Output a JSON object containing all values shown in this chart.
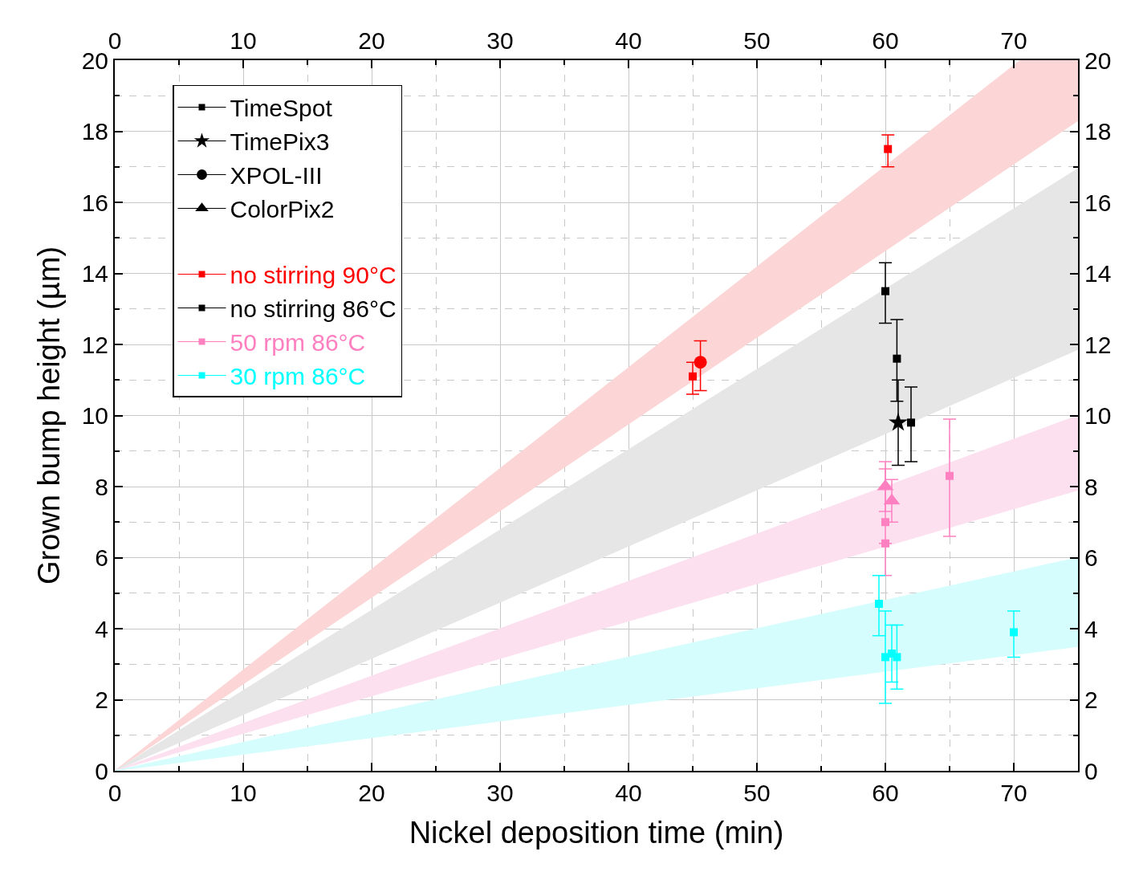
{
  "chart_data": {
    "type": "scatter",
    "xlabel": "Nickel deposition time (min)",
    "ylabel": "Grown bump height (µm)",
    "xlim": [
      0,
      75
    ],
    "xticks": [
      0,
      10,
      20,
      30,
      40,
      50,
      60,
      70
    ],
    "x2lim": [
      0,
      75
    ],
    "x2ticks": [
      0,
      10,
      20,
      30,
      40,
      50,
      60,
      70
    ],
    "ylim": [
      0,
      20
    ],
    "yticks": [
      0,
      2,
      4,
      6,
      8,
      10,
      12,
      14,
      16,
      18,
      20
    ],
    "y2lim": [
      0,
      20
    ],
    "y2ticks": [
      0,
      2,
      4,
      6,
      8,
      10,
      12,
      14,
      16,
      18,
      20
    ],
    "grid": true,
    "legend": "top left",
    "series": [
      {
        "type": "line",
        "color": "#fcd6d6",
        "x": [
          0,
          70.5,
          75
        ],
        "values": [
          null,
          null,
          null
        ],
        "lower": [
          0,
          17.2,
          18.3
        ],
        "upper": [
          0,
          20,
          20
        ]
      },
      {
        "type": "line",
        "color": "#e6e6e6",
        "x": [
          0,
          75
        ],
        "values": [
          null,
          null
        ],
        "lower": [
          0,
          11.86
        ],
        "upper": [
          0,
          16.95
        ]
      },
      {
        "type": "line",
        "color": "#fde0f0",
        "x": [
          0,
          75
        ],
        "values": [
          null,
          null
        ],
        "lower": [
          0,
          7.9
        ],
        "upper": [
          0,
          10.0
        ]
      },
      {
        "type": "line",
        "color": "#d5fdfd",
        "x": [
          0,
          75
        ],
        "values": [
          null,
          null
        ],
        "lower": [
          0,
          3.5
        ],
        "upper": [
          0,
          6.0
        ]
      },
      {
        "name": "TimeSpot",
        "color": "#000000",
        "marker": "square"
      },
      {
        "name": "TimePix3",
        "color": "#000000",
        "marker": "star"
      },
      {
        "name": "XPOL-III",
        "color": "#000000",
        "marker": "circle"
      },
      {
        "name": "ColorPix2",
        "color": "#000000",
        "marker": "triangle"
      },
      {
        "name": "no stirring 90°C",
        "color": "#ff0000",
        "marker": "square",
        "x": [
          45,
          60.2
        ],
        "values": [
          11.1,
          17.5
        ],
        "errors": [
          [
            10.6,
            11.5
          ],
          [
            17.0,
            17.9
          ]
        ]
      },
      {
        "color": "#ff0000",
        "marker": "circle",
        "x": [
          45.6
        ],
        "values": [
          11.5
        ],
        "errors": [
          [
            10.7,
            12.1
          ]
        ]
      },
      {
        "name": "no stirring 86°C",
        "color": "#000000",
        "marker": "square",
        "x": [
          60.0,
          60.9,
          62.0
        ],
        "values": [
          13.5,
          11.6,
          9.8
        ],
        "errors": [
          [
            12.6,
            14.3
          ],
          [
            10.4,
            12.7
          ],
          [
            8.7,
            10.8
          ]
        ]
      },
      {
        "color": "#000000",
        "marker": "star",
        "x": [
          61.0
        ],
        "values": [
          9.8
        ],
        "errors": [
          [
            8.6,
            11.0
          ]
        ]
      },
      {
        "name": "50 rpm 86°C",
        "color": "#ff80c0",
        "marker": "square",
        "x": [
          60.0,
          60.0,
          65.0
        ],
        "values": [
          7.0,
          6.4,
          8.3
        ],
        "errors": [
          [
            5.5,
            8.7
          ],
          null,
          [
            6.6,
            9.9
          ]
        ]
      },
      {
        "color": "#ff80c0",
        "marker": "triangle",
        "x": [
          60.0,
          60.5
        ],
        "values": [
          8.0,
          7.6
        ],
        "errors": [
          [
            7.3,
            8.5
          ],
          [
            7.0,
            8.2
          ]
        ]
      },
      {
        "name": "30 rpm 86°C",
        "color": "#00ffff",
        "marker": "square",
        "x": [
          59.5,
          60.0,
          60.5,
          60.9,
          70.0
        ],
        "values": [
          4.7,
          3.2,
          3.3,
          3.2,
          3.9
        ],
        "errors": [
          [
            3.8,
            5.5
          ],
          [
            1.9,
            4.5
          ],
          [
            2.5,
            4.1
          ],
          [
            2.3,
            4.1
          ],
          [
            3.2,
            4.5
          ]
        ]
      }
    ]
  }
}
